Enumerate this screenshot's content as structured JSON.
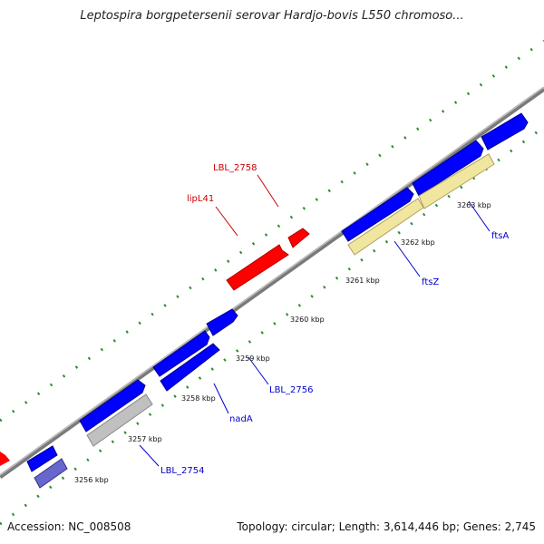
{
  "title": "Leptospira borgpetersenii serovar Hardjo-bovis L550 chromoso...",
  "footer": {
    "accession": "Accession: NC_008508",
    "summary": "Topology: circular; Length: 3,614,446 bp; Genes: 2,745"
  },
  "colors": {
    "backbone": "#8a8a8a",
    "dots": "#2e8b2e",
    "forward_gene": "#0000ff",
    "reverse_gene": "#ff0000",
    "pseudo_gene": "#b8b8b8",
    "rna_gene": "#f0e6a0",
    "alt_gene": "#6666cc",
    "label_blue": "#0000cc",
    "label_red": "#cc0000"
  },
  "ticks": [
    "3256 kbp",
    "3257 kbp",
    "3258 kbp",
    "3259 kbp",
    "3260 kbp",
    "3261 kbp",
    "3262 kbp",
    "3263 kbp"
  ],
  "gene_labels": [
    {
      "name": "LBL_2754",
      "color": "blue"
    },
    {
      "name": "nadA",
      "color": "blue"
    },
    {
      "name": "LBL_2756",
      "color": "blue"
    },
    {
      "name": "ftsZ",
      "color": "blue"
    },
    {
      "name": "ftsA",
      "color": "blue"
    },
    {
      "name": "lipL41",
      "color": "red"
    },
    {
      "name": "LBL_2758",
      "color": "red"
    }
  ]
}
